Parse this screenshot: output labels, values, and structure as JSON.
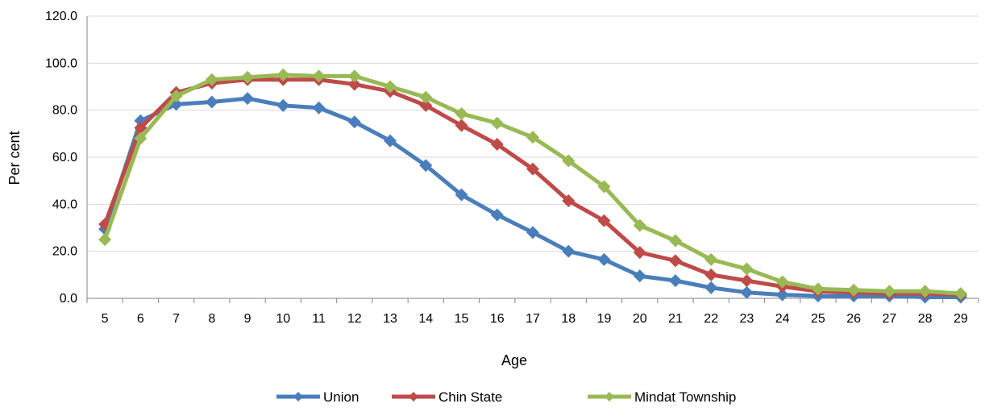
{
  "chart_data": {
    "type": "line",
    "title": "",
    "xlabel": "Age",
    "ylabel": "Per cent",
    "ylim": [
      0,
      120
    ],
    "yticks": [
      "0.0",
      "20.0",
      "40.0",
      "60.0",
      "80.0",
      "100.0",
      "120.0"
    ],
    "x": [
      "5",
      "6",
      "7",
      "8",
      "9",
      "10",
      "11",
      "12",
      "13",
      "14",
      "15",
      "16",
      "17",
      "18",
      "19",
      "20",
      "21",
      "22",
      "23",
      "24",
      "25",
      "26",
      "27",
      "28",
      "29"
    ],
    "grid": "horizontal",
    "legend_position": "bottom",
    "series": [
      {
        "name": "Union",
        "color": "#4a7ebb",
        "values": [
          29.5,
          75.5,
          82.5,
          83.5,
          85.0,
          82.0,
          81.0,
          75.0,
          67.0,
          56.5,
          44.0,
          35.5,
          28.0,
          20.0,
          16.5,
          9.5,
          7.5,
          4.5,
          2.5,
          1.5,
          1.0,
          1.0,
          1.0,
          0.5,
          0.5
        ]
      },
      {
        "name": "Chin State",
        "color": "#be4b48",
        "values": [
          31.5,
          72.5,
          87.5,
          91.5,
          93.0,
          93.0,
          93.0,
          91.0,
          88.0,
          82.0,
          73.5,
          65.5,
          55.0,
          41.5,
          33.0,
          19.5,
          16.0,
          10.0,
          7.5,
          5.0,
          3.0,
          2.5,
          2.0,
          2.0,
          1.5
        ]
      },
      {
        "name": "Mindat Township",
        "color": "#98b954",
        "values": [
          25.0,
          68.0,
          86.0,
          93.0,
          94.0,
          95.0,
          94.5,
          94.5,
          90.0,
          85.5,
          78.5,
          74.5,
          68.5,
          58.5,
          47.5,
          31.0,
          24.5,
          16.5,
          12.5,
          7.0,
          4.0,
          3.5,
          3.0,
          3.0,
          2.0
        ]
      }
    ]
  }
}
